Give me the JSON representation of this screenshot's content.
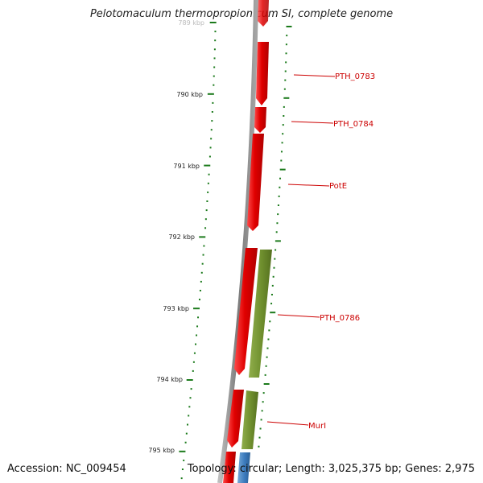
{
  "title": "Pelotomaculum thermopropionicum SI, complete genome",
  "footer": {
    "accession": "Accession: NC_009454",
    "topology": "Topology: circular; Length: 3,025,375 bp; Genes: 2,975"
  },
  "scale_labels": [
    "789 kbp",
    "790 kbp",
    "791 kbp",
    "792 kbp",
    "793 kbp",
    "794 kbp",
    "795 kbp"
  ],
  "gene_labels": [
    "PTH_0783",
    "PTH_0784",
    "PotE",
    "PTH_0786",
    "MurI"
  ],
  "colors": {
    "gene_red": "#e00000",
    "gene_green": "#6f8f2e",
    "gene_blue": "#3b7bbd",
    "backbone": "#8a8a8a",
    "tick": "#1b7a1b",
    "label": "#cc0000"
  }
}
